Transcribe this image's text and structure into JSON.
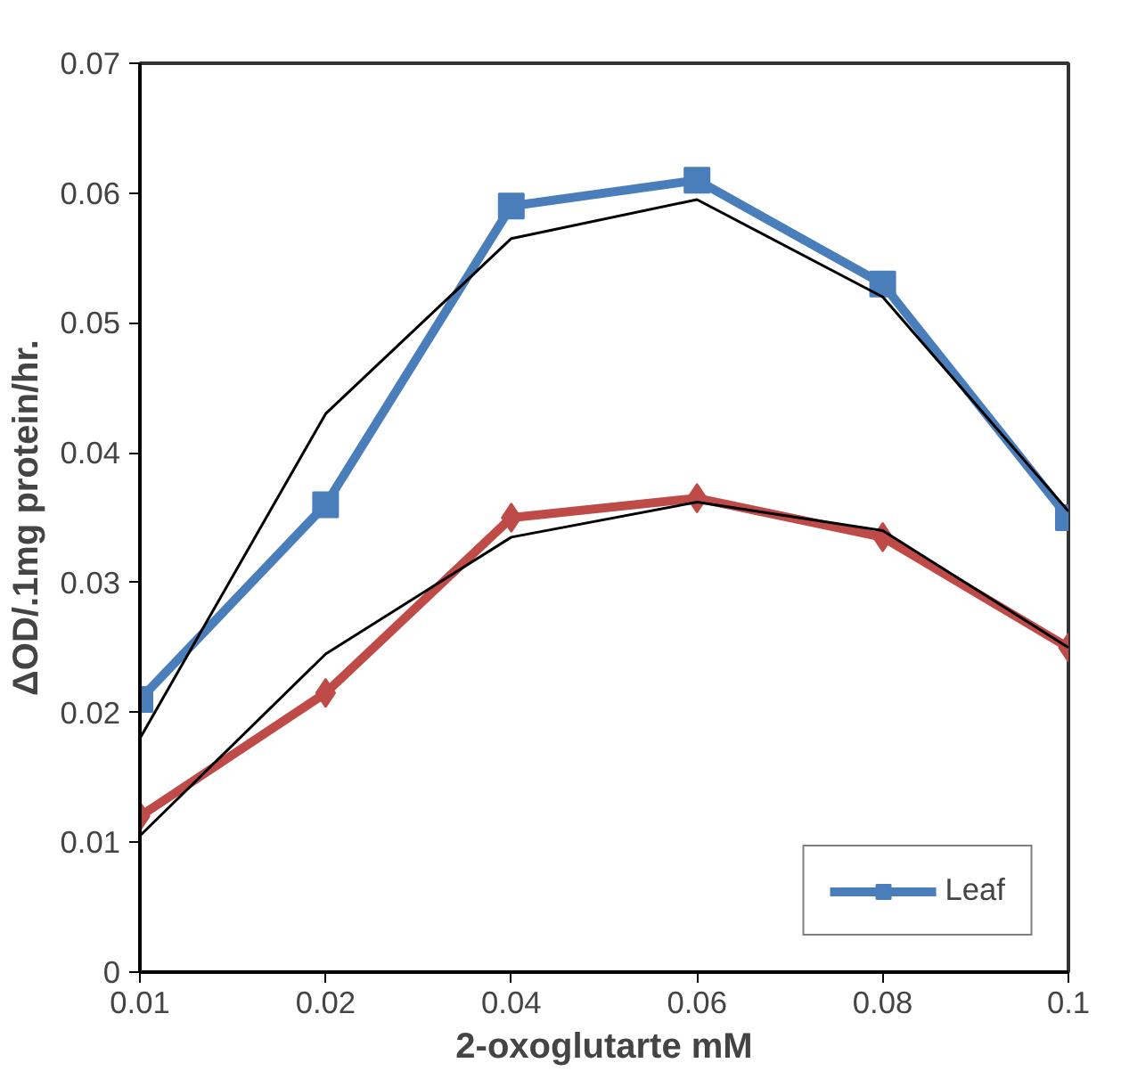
{
  "chart_data": {
    "type": "line",
    "xlabel": "2-oxoglutarte mM",
    "ylabel": "ΔOD/.1mg protein/hr.",
    "categories": [
      "0.01",
      "0.02",
      "0.04",
      "0.06",
      "0.08",
      "0.1"
    ],
    "series": [
      {
        "name": "Leaf",
        "color": "#4a7ebb",
        "marker": "square",
        "values": [
          0.021,
          0.036,
          0.059,
          0.061,
          0.053,
          0.035
        ]
      },
      {
        "color": "#be4b48",
        "marker": "diamond",
        "values": [
          0.012,
          0.0215,
          0.035,
          0.0365,
          0.0335,
          0.025
        ]
      },
      {
        "color": "#000000",
        "marker": "none",
        "values": [
          0.018,
          0.043,
          0.0565,
          0.0595,
          0.052,
          0.0355
        ]
      },
      {
        "color": "#000000",
        "marker": "none",
        "values": [
          0.0105,
          0.0245,
          0.0335,
          0.0362,
          0.034,
          0.025
        ]
      }
    ],
    "ylim": [
      0,
      0.07
    ],
    "yticks": [
      0,
      0.01,
      0.02,
      0.03,
      0.04,
      0.05,
      0.06,
      0.07
    ],
    "grid": false,
    "legend": "bottom right",
    "line_style": "solid"
  }
}
